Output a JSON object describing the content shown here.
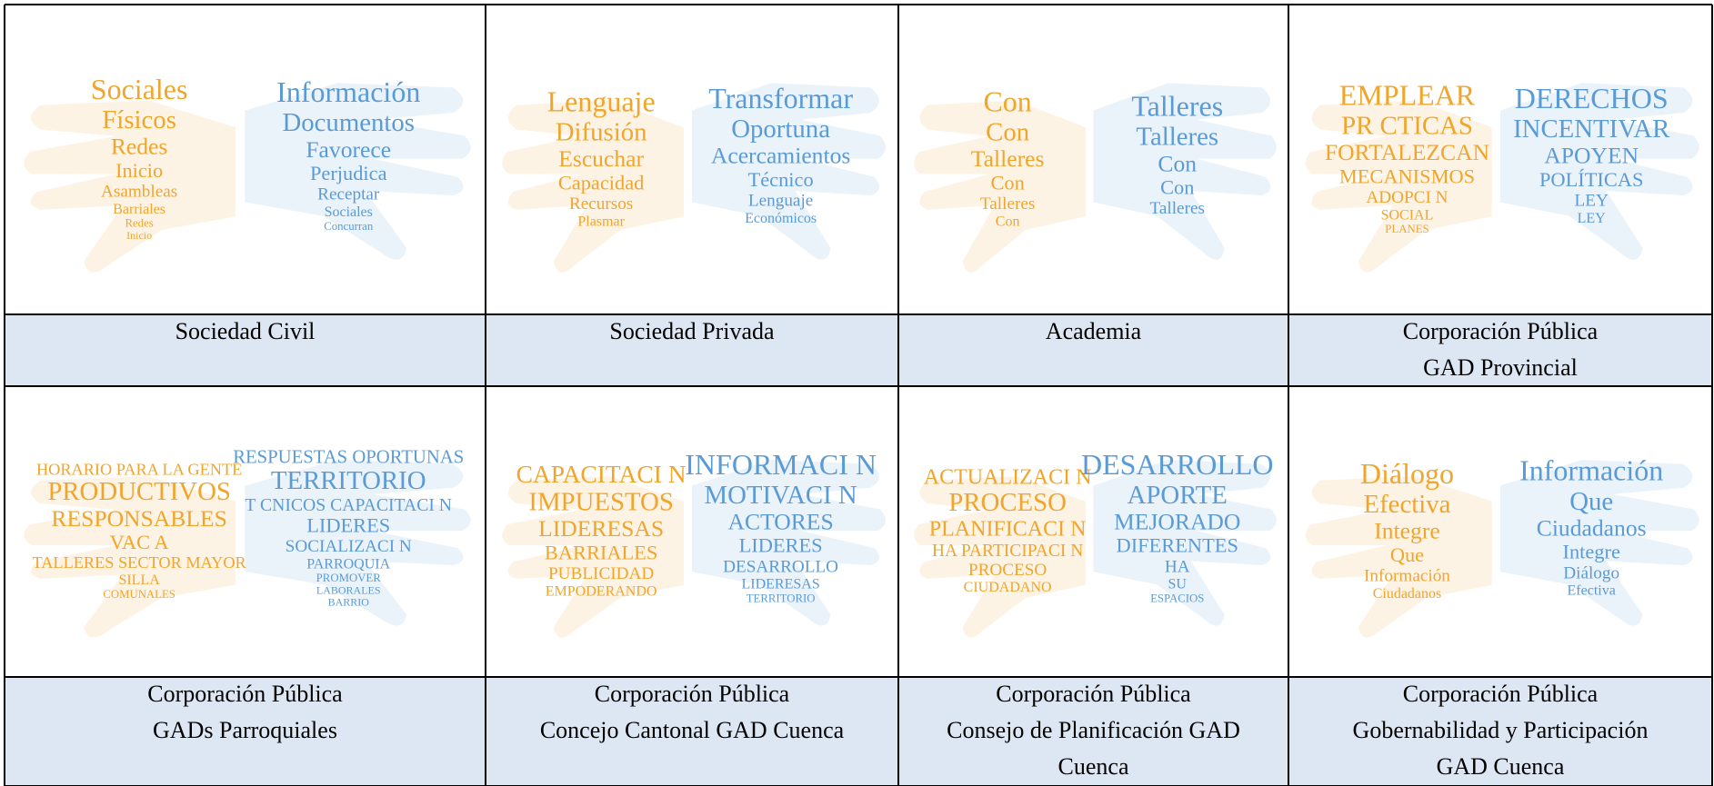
{
  "cells": [
    {
      "caption": [
        "Sociedad Civil"
      ],
      "left_words": [
        "Sociales",
        "Físicos",
        "Redes",
        "Inicio",
        "Asambleas",
        "Barriales",
        "Redes",
        "Inicio"
      ],
      "right_words": [
        "Información",
        "Documentos",
        "Favorece",
        "Perjudica",
        "Receptar",
        "Sociales",
        "Concurran"
      ]
    },
    {
      "caption": [
        "Sociedad Privada"
      ],
      "left_words": [
        "Lenguaje",
        "Difusión",
        "Escuchar",
        "Capacidad",
        "Recursos",
        "Plasmar"
      ],
      "right_words": [
        "Transformar",
        "Oportuna",
        "Acercamientos",
        "Técnico",
        "Lenguaje",
        "Económicos"
      ]
    },
    {
      "caption": [
        "Academia"
      ],
      "left_words": [
        "Con",
        "Con",
        "Talleres",
        "Con",
        "Talleres",
        "Con"
      ],
      "right_words": [
        "Talleres",
        "Talleres",
        "Con",
        "Con",
        "Talleres"
      ]
    },
    {
      "caption": [
        "Corporación Pública",
        "GAD Provincial"
      ],
      "left_words": [
        "EMPLEAR",
        "PR CTICAS",
        "FORTALEZCAN",
        "MECANISMOS",
        "ADOPCI N",
        "SOCIAL",
        "PLANES"
      ],
      "right_words": [
        "DERECHOS",
        "INCENTIVAR",
        "APOYEN",
        "POLÍTICAS",
        "LEY",
        "LEY"
      ]
    },
    {
      "caption": [
        "Corporación Pública",
        "GADs Parroquiales"
      ],
      "left_words": [
        "HORARIO PARA LA GENTE",
        "PRODUCTIVOS",
        "RESPONSABLES",
        "VAC A",
        "TALLERES SECTOR MAYOR",
        "SILLA",
        "COMUNALES"
      ],
      "right_words": [
        "RESPUESTAS OPORTUNAS",
        "TERRITORIO",
        "T CNICOS CAPACITACI N",
        "LIDERES",
        "SOCIALIZACI N",
        "PARROQUIA",
        "PROMOVER",
        "LABORALES",
        "BARRIO"
      ]
    },
    {
      "caption": [
        "Corporación Pública",
        "Concejo Cantonal GAD Cuenca"
      ],
      "left_words": [
        "CAPACITACI N",
        "IMPUESTOS",
        "LIDERESAS",
        "BARRIALES",
        "PUBLICIDAD",
        "EMPODERANDO"
      ],
      "right_words": [
        "INFORMACI N",
        "MOTIVACI N",
        "ACTORES",
        "LIDERES",
        "DESARROLLO",
        "LIDERESAS",
        "TERRITORIO"
      ]
    },
    {
      "caption": [
        "Corporación Pública",
        "Consejo de Planificación GAD",
        "Cuenca"
      ],
      "left_words": [
        "ACTUALIZACI N",
        "PROCESO",
        "PLANIFICACI N",
        "HA PARTICIPACI N",
        "PROCESO",
        "CIUDADANO"
      ],
      "right_words": [
        "DESARROLLO",
        "APORTE",
        "MEJORADO",
        "DIFERENTES",
        "HA",
        "SU",
        "ESPACIOS"
      ]
    },
    {
      "caption": [
        "Corporación Pública",
        "Gobernabilidad y Participación",
        "GAD Cuenca"
      ],
      "left_words": [
        "Diálogo",
        "Efectiva",
        "Integre",
        "Que",
        "Información",
        "Ciudadanos"
      ],
      "right_words": [
        "Información",
        "Que",
        "Ciudadanos",
        "Integre",
        "Diálogo",
        "Efectiva"
      ]
    }
  ]
}
